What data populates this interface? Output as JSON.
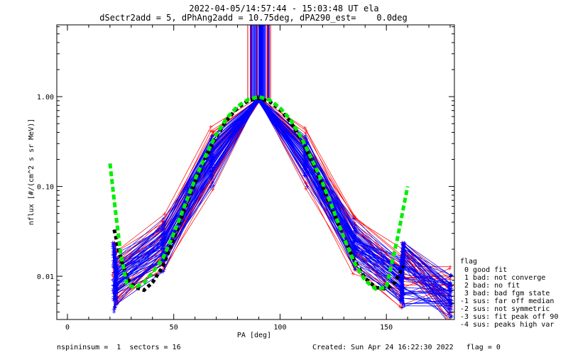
{
  "chart_data": {
    "type": "line",
    "title": "2022-04-05/14:57:44 - 15:03:48 UT ela",
    "subtitle": "dSectr2add = 5, dPhAng2add = 10.75deg, dPA290_est=    0.0deg",
    "xlabel": "PA [deg]",
    "ylabel": "nflux [#/(cm^2 s sr MeV)]",
    "xlim": [
      -5,
      182
    ],
    "ylim": [
      0.0033,
      6.3
    ],
    "yscale": "log",
    "x_ticks": [
      "0",
      "50",
      "100",
      "150"
    ],
    "x_tick_values": [
      0,
      50,
      100,
      150
    ],
    "y_ticks": [
      "0.01",
      "0.10",
      "1.00"
    ],
    "y_tick_values": [
      0.01,
      0.1,
      1.0
    ],
    "grid": false,
    "legend_position": "right",
    "colors": {
      "blue_sector_lines": "#0000ff",
      "red_sector_lines": "#ff0000",
      "fit": "#00ee00",
      "median": "#000000"
    },
    "series": [
      {
        "x": [
          22,
          25,
          28,
          32,
          36,
          40,
          45,
          50,
          55,
          60,
          65,
          70,
          75,
          80,
          85,
          90,
          95,
          100,
          105,
          110,
          115,
          120,
          125,
          130,
          135,
          140,
          145,
          150,
          154,
          158
        ],
        "values": [
          0.033,
          0.016,
          0.0095,
          0.0075,
          0.007,
          0.0085,
          0.013,
          0.026,
          0.055,
          0.11,
          0.21,
          0.36,
          0.55,
          0.75,
          0.9,
          0.96,
          0.88,
          0.72,
          0.52,
          0.33,
          0.19,
          0.1,
          0.052,
          0.027,
          0.015,
          0.0095,
          0.0075,
          0.0072,
          0.0085,
          0.013
        ]
      },
      {
        "x": [
          20,
          22,
          25,
          28,
          32,
          36,
          40,
          45,
          50,
          55,
          60,
          65,
          70,
          75,
          80,
          85,
          90,
          95,
          100,
          105,
          110,
          115,
          120,
          125,
          130,
          135,
          140,
          145,
          150,
          155,
          160
        ],
        "values": [
          0.18,
          0.07,
          0.018,
          0.008,
          0.0075,
          0.0085,
          0.011,
          0.016,
          0.03,
          0.06,
          0.12,
          0.22,
          0.38,
          0.58,
          0.78,
          0.93,
          1.0,
          0.92,
          0.75,
          0.55,
          0.35,
          0.2,
          0.11,
          0.055,
          0.027,
          0.014,
          0.009,
          0.0072,
          0.0075,
          0.025,
          0.1
        ]
      }
    ],
    "legend": {
      "heading": "flag",
      "entries": [
        " 0 good fit",
        " 1 bad: not converge",
        " 2 bad: no fit",
        " 3 bad: bad fgm state",
        "-1 sus: far off median",
        "-2 sus: not symmetric",
        "-3 sus: fit peak off 90",
        "-4 sus: peaks high var"
      ]
    },
    "footer": {
      "left": "nspininsum =  1  sectors = 16",
      "right": "Created: Sun Apr 24 16:22:30 2022   flag = 0"
    }
  }
}
